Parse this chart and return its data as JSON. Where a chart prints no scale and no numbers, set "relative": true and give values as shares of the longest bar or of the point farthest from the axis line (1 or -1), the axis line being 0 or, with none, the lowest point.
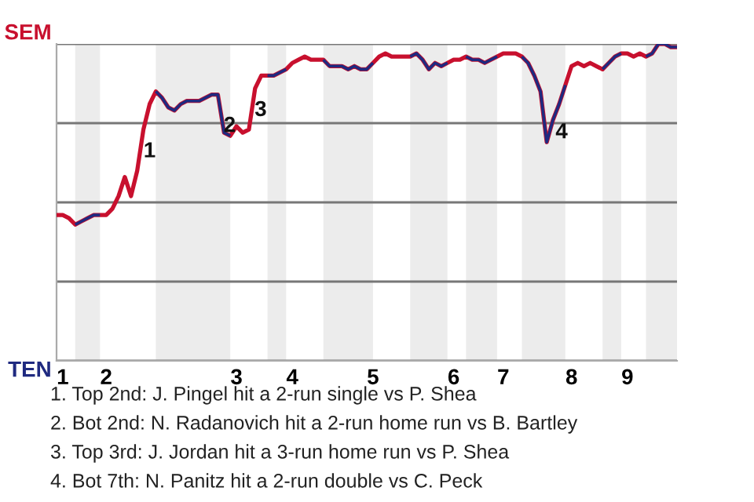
{
  "chart_data": {
    "type": "line",
    "relative": true,
    "categories": [
      null,
      "1",
      null,
      null,
      null,
      null,
      null,
      null,
      "2",
      null,
      null,
      null,
      null,
      null,
      null,
      null,
      null,
      null,
      null,
      null,
      null,
      null,
      null,
      null,
      null,
      null,
      null,
      null,
      null,
      "3",
      null,
      null,
      null,
      null,
      null,
      null,
      null,
      null,
      "4",
      null,
      null,
      null,
      null,
      null,
      null,
      null,
      null,
      null,
      null,
      null,
      null,
      "5",
      null,
      null,
      null,
      null,
      null,
      null,
      null,
      null,
      null,
      null,
      null,
      null,
      "6",
      null,
      null,
      null,
      null,
      null,
      null,
      null,
      "7",
      null,
      null,
      null,
      null,
      null,
      null,
      null,
      null,
      null,
      null,
      "8",
      null,
      null,
      null,
      null,
      null,
      null,
      null,
      null,
      "9",
      null,
      null,
      null,
      null,
      null,
      null,
      null,
      null
    ],
    "series": [
      {
        "color": "#c8102e",
        "values": [
          0.46,
          0.46,
          0.45,
          0.43,
          0.44,
          0.45,
          0.46,
          0.46,
          0.46,
          0.48,
          0.52,
          0.58,
          0.52,
          0.6,
          0.73,
          0.81,
          0.85,
          0.83,
          0.8,
          0.79,
          0.81,
          0.82,
          0.82,
          0.82,
          0.83,
          0.84,
          0.84,
          0.72,
          0.71,
          0.74,
          0.72,
          0.73,
          0.86,
          0.9,
          0.9,
          0.9,
          0.91,
          0.92,
          0.94,
          0.95,
          0.96,
          0.95,
          0.95,
          0.95,
          0.93,
          0.93,
          0.93,
          0.92,
          0.93,
          0.92,
          0.92,
          0.94,
          0.96,
          0.97,
          0.96,
          0.96,
          0.96,
          0.96,
          0.97,
          0.95,
          0.92,
          0.94,
          0.93,
          0.94,
          0.95,
          0.95,
          0.96,
          0.95,
          0.95,
          0.94,
          0.95,
          0.96,
          0.97,
          0.97,
          0.97,
          0.96,
          0.94,
          0.9,
          0.85,
          0.69,
          0.76,
          0.81,
          0.87,
          0.93,
          0.94,
          0.93,
          0.94,
          0.93,
          0.92,
          0.94,
          0.96,
          0.97,
          0.97,
          0.96,
          0.97,
          0.96,
          0.97,
          1,
          1,
          0.99,
          0.99
        ],
        "colors": [
          "#c8102e",
          "#c8102e",
          "#c8102e",
          "#1f2a80",
          "#1f2a80",
          "#1f2a80",
          "#1f2a80",
          "#c8102e",
          "#c8102e",
          "#c8102e",
          "#c8102e",
          "#c8102e",
          "#c8102e",
          "#c8102e",
          "#c8102e",
          "#c8102e",
          "#1f2a80",
          "#1f2a80",
          "#1f2a80",
          "#1f2a80",
          "#1f2a80",
          "#1f2a80",
          "#1f2a80",
          "#1f2a80",
          "#1f2a80",
          "#1f2a80",
          "#1f2a80",
          "#1f2a80",
          "#c8102e",
          "#c8102e",
          "#c8102e",
          "#c8102e",
          "#c8102e",
          "#c8102e",
          "#1f2a80",
          "#1f2a80",
          "#1f2a80",
          "#c8102e",
          "#c8102e",
          "#c8102e",
          "#c8102e",
          "#c8102e",
          "#c8102e",
          "#1f2a80",
          "#1f2a80",
          "#1f2a80",
          "#1f2a80",
          "#1f2a80",
          "#1f2a80",
          "#1f2a80",
          "#1f2a80",
          "#c8102e",
          "#c8102e",
          "#c8102e",
          "#c8102e",
          "#c8102e",
          "#c8102e",
          "#1f2a80",
          "#1f2a80",
          "#1f2a80",
          "#1f2a80",
          "#1f2a80",
          "#1f2a80",
          "#c8102e",
          "#c8102e",
          "#c8102e",
          "#1f2a80",
          "#1f2a80",
          "#1f2a80",
          "#1f2a80",
          "#1f2a80",
          "#c8102e",
          "#c8102e",
          "#c8102e",
          "#c8102e",
          "#1f2a80",
          "#1f2a80",
          "#1f2a80",
          "#1f2a80",
          "#1f2a80",
          "#1f2a80",
          "#1f2a80",
          "#c8102e",
          "#c8102e",
          "#c8102e",
          "#c8102e",
          "#c8102e",
          "#c8102e",
          "#1f2a80",
          "#1f2a80",
          "#1f2a80",
          "#c8102e",
          "#c8102e",
          "#c8102e",
          "#c8102e",
          "#1f2a80",
          "#1f2a80",
          "#1f2a80",
          "#1f2a80",
          "#1f2a80",
          "#1f2a80"
        ]
      }
    ],
    "grid": "y",
    "annotations": [
      "SEM",
      "TEN",
      "1",
      "2",
      "3",
      "4",
      "1. Top 2nd: J. Pingel hit a 2-run single vs P. Shea",
      "2. Bot 2nd: N. Radanovich hit a 2-run home run vs B. Bartley",
      "3. Top 3rd: J. Jordan hit a 3-run home run vs P. Shea",
      "4. Bot 7th: N. Panitz hit a 2-run double vs C. Peck"
    ],
    "marker": "none",
    "line_style": "solid",
    "legend": false
  }
}
